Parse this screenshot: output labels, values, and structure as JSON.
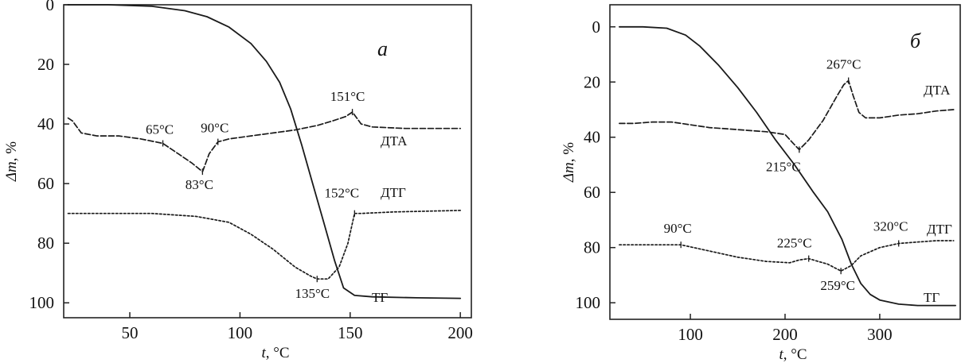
{
  "chart_data": [
    {
      "type": "line",
      "panel": "a",
      "panel_label": "а",
      "xlabel_var": "t",
      "xlabel_unit": ", °C",
      "ylabel_var": "Δm",
      "ylabel_unit": ", %",
      "xlim": [
        20,
        205
      ],
      "ylim": [
        0,
        105
      ],
      "y_inverted": true,
      "x_ticks": [
        50,
        100,
        150,
        200
      ],
      "y_ticks": [
        0,
        20,
        40,
        60,
        80,
        100
      ],
      "grid": false,
      "series": [
        {
          "name": "ТГ",
          "style": "solid",
          "x": [
            22,
            40,
            60,
            75,
            85,
            95,
            105,
            112,
            118,
            123,
            128,
            133,
            138,
            143,
            147,
            152,
            160,
            180,
            200
          ],
          "y": [
            0,
            0,
            0.5,
            2,
            4,
            7.5,
            13,
            19,
            26,
            35,
            47,
            60,
            73,
            86,
            95,
            97.5,
            98,
            98.3,
            98.5
          ]
        },
        {
          "name": "ДТА",
          "style": "dashed",
          "x": [
            22,
            24,
            28,
            35,
            45,
            55,
            65,
            72,
            78,
            83,
            86,
            90,
            95,
            105,
            115,
            125,
            135,
            142,
            148,
            151,
            155,
            160,
            175,
            200
          ],
          "y": [
            38,
            39,
            43,
            44,
            44,
            45,
            46.5,
            50,
            53,
            56,
            50,
            46,
            45,
            44,
            43,
            42,
            40.5,
            39,
            37.5,
            36,
            40,
            41,
            41.5,
            41.5
          ]
        },
        {
          "name": "ДТГ",
          "style": "dotted",
          "x": [
            22,
            40,
            60,
            80,
            95,
            105,
            115,
            125,
            132,
            135,
            140,
            145,
            149,
            152,
            155,
            170,
            200
          ],
          "y": [
            70,
            70,
            70,
            71,
            73,
            77,
            82,
            88,
            91,
            92,
            92,
            88,
            80,
            70,
            70,
            69.5,
            69
          ]
        }
      ],
      "annotations": [
        {
          "text": "65°C",
          "x": 65,
          "y": 46.5
        },
        {
          "text": "83°C",
          "x": 83,
          "y": 56
        },
        {
          "text": "90°C",
          "x": 90,
          "y": 46
        },
        {
          "text": "151°C",
          "x": 151,
          "y": 36
        },
        {
          "text": "152°C",
          "x": 152,
          "y": 70
        },
        {
          "text": "135°C",
          "x": 135,
          "y": 92
        }
      ]
    },
    {
      "type": "line",
      "panel": "b",
      "panel_label": "б",
      "xlabel_var": "t",
      "xlabel_unit": ", °C",
      "ylabel_var": "Δm",
      "ylabel_unit": ", %",
      "xlim": [
        15,
        385
      ],
      "ylim": [
        -8,
        106
      ],
      "y_inverted": true,
      "x_ticks": [
        100,
        200,
        300
      ],
      "y_ticks": [
        0,
        20,
        40,
        60,
        80,
        100
      ],
      "grid": false,
      "series": [
        {
          "name": "ТГ",
          "style": "solid",
          "x": [
            25,
            50,
            75,
            95,
            110,
            130,
            150,
            170,
            190,
            210,
            230,
            245,
            260,
            270,
            280,
            290,
            300,
            320,
            340,
            360,
            380
          ],
          "y": [
            0,
            0,
            0.5,
            3,
            7,
            14,
            22,
            31,
            41,
            50,
            60,
            67,
            77,
            86,
            93,
            97,
            99,
            100.5,
            101,
            101,
            101
          ]
        },
        {
          "name": "ДТА",
          "style": "dashed",
          "x": [
            25,
            40,
            60,
            80,
            100,
            120,
            140,
            160,
            180,
            200,
            208,
            215,
            225,
            240,
            255,
            262,
            267,
            272,
            278,
            285,
            300,
            320,
            340,
            360,
            378
          ],
          "y": [
            35,
            35,
            34.5,
            34.5,
            35.5,
            36.5,
            37,
            37.5,
            38,
            39,
            42,
            44.5,
            41,
            34,
            25,
            21,
            19.5,
            25,
            31,
            33,
            33,
            32,
            31.5,
            30.5,
            30
          ]
        },
        {
          "name": "ДТГ",
          "style": "dotted",
          "x": [
            25,
            50,
            70,
            90,
            110,
            130,
            150,
            180,
            205,
            215,
            225,
            235,
            245,
            259,
            270,
            280,
            300,
            320,
            340,
            360,
            378
          ],
          "y": [
            79,
            79,
            79,
            79,
            80.5,
            82,
            83.5,
            85,
            85.5,
            84.5,
            84,
            85,
            86,
            88.5,
            86.5,
            83,
            80,
            78.5,
            78,
            77.5,
            77.5
          ]
        }
      ],
      "annotations": [
        {
          "text": "267°C",
          "x": 267,
          "y": 19.5
        },
        {
          "text": "215°C",
          "x": 215,
          "y": 44.5
        },
        {
          "text": "90°C",
          "x": 90,
          "y": 79
        },
        {
          "text": "225°C",
          "x": 225,
          "y": 84
        },
        {
          "text": "259°C",
          "x": 259,
          "y": 88.5
        },
        {
          "text": "320°C",
          "x": 320,
          "y": 78.5
        }
      ]
    }
  ]
}
